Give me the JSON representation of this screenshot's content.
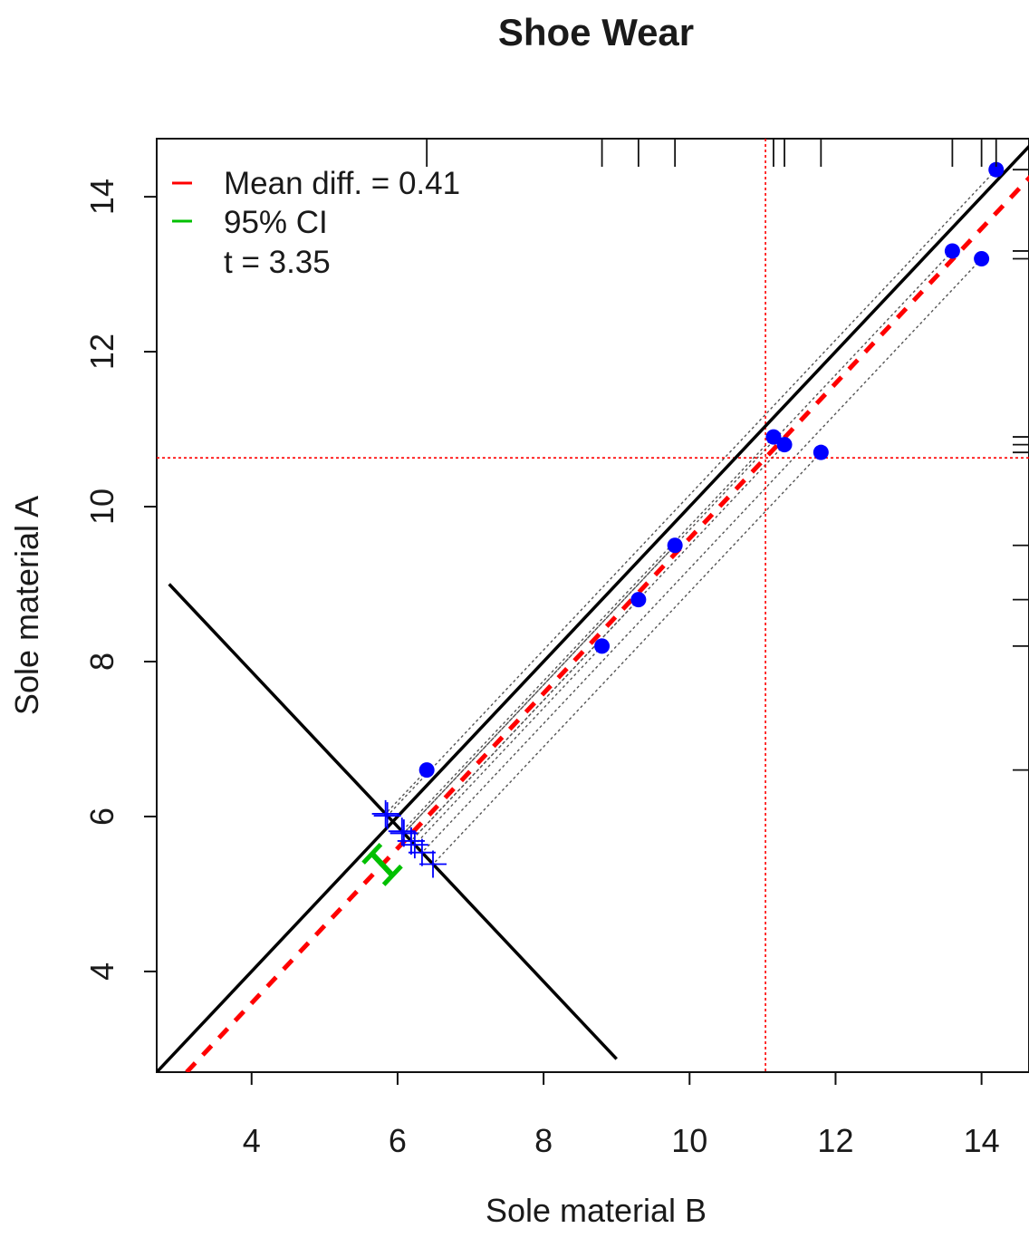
{
  "chart_data": {
    "type": "scatter",
    "title": "Shoe Wear",
    "xlabel": "Sole material B",
    "ylabel": "Sole material A",
    "xlim": [
      2.7,
      14.65
    ],
    "ylim": [
      2.7,
      14.75
    ],
    "x_ticks": [
      4,
      6,
      8,
      10,
      12,
      14
    ],
    "y_ticks": [
      4,
      6,
      8,
      10,
      12,
      14
    ],
    "series": [
      {
        "marker": "filled-circle",
        "color": "#0000ff",
        "points": [
          {
            "x": 14.2,
            "y": 14.35
          },
          {
            "x": 13.6,
            "y": 13.3
          },
          {
            "x": 14.0,
            "y": 13.2
          },
          {
            "x": 11.15,
            "y": 10.9
          },
          {
            "x": 11.3,
            "y": 10.8
          },
          {
            "x": 11.8,
            "y": 10.7
          },
          {
            "x": 9.8,
            "y": 9.5
          },
          {
            "x": 9.3,
            "y": 8.8
          },
          {
            "x": 8.8,
            "y": 8.2
          },
          {
            "x": 6.4,
            "y": 6.6
          }
        ]
      }
    ],
    "reference_lines": {
      "identity": {
        "color": "#000000"
      },
      "mean_difference": {
        "color": "#ff0000",
        "style": "dashed",
        "offset": 0.41
      },
      "anti_diagonal": {
        "color": "#000000",
        "from": {
          "x": 2.87,
          "y": 9.0
        },
        "to": {
          "x": 9.0,
          "y": 2.87
        }
      },
      "vertical_mean_x": {
        "x": 11.04,
        "color": "#ff0000",
        "style": "dotted"
      },
      "horizontal_mean_y": {
        "y": 10.63,
        "color": "#ff0000",
        "style": "dotted"
      }
    },
    "ci_bar": {
      "color": "#00c000",
      "lower": 0.13,
      "upper": 0.69
    },
    "legend": {
      "position": "top-left",
      "entries": [
        {
          "label": "Mean diff. = 0.41",
          "color": "#ff0000"
        },
        {
          "label": "95% CI",
          "color": "#00c000"
        },
        {
          "label": "t = 3.35",
          "color": ""
        }
      ]
    },
    "grid": false
  }
}
